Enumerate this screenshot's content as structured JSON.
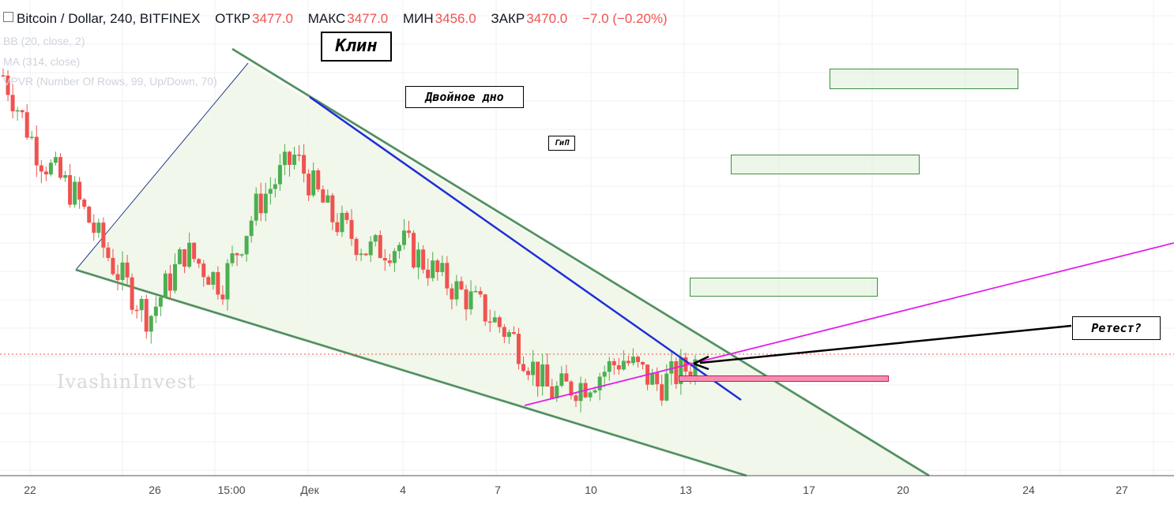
{
  "header": {
    "symbol": "Bitcoin / Dollar, 240, BITFINEX",
    "open_label": "ОТКР",
    "open": "3477.0",
    "high_label": "МАКС",
    "high": "3477.0",
    "low_label": "МИН",
    "low": "3456.0",
    "close_label": "ЗАКР",
    "close": "3470.0",
    "change": "−7.0 (−0.20%)"
  },
  "indicators": [
    "BB (20, close, 2)",
    "MA (314, close)",
    "VPVR (Number Of Rows, 99, Up/Down, 70)"
  ],
  "annotations": {
    "wedge": "Клин",
    "double_bottom": "Двойное дно",
    "hs": "ГиП",
    "retest": "Ретест?"
  },
  "watermark": "IvashinInvest",
  "colors": {
    "up": "#26a69a",
    "up_fill": "#4caf50",
    "down": "#ef5350",
    "wedge_fill": "#eef6e6",
    "wedge_edge": "#6aaf5c",
    "trend_blue": "#1f2fd6",
    "magenta": "#e21ee8",
    "price_line": "#ef5350",
    "grid": "#eef0f3"
  },
  "chart_data": {
    "type": "candlestick",
    "title": "Bitcoin / Dollar, 240, BITFINEX",
    "x_ticks": [
      "22",
      "26",
      "15:00",
      "Дек",
      "4",
      "7",
      "10",
      "13",
      "17",
      "20",
      "24",
      "27"
    ],
    "close_series": [
      5600,
      5000,
      4700,
      4200,
      3800,
      4300,
      4050,
      4650,
      5000,
      4550,
      4300,
      4350,
      4100,
      3900,
      3650,
      3250,
      3320,
      3500,
      3300,
      3470
    ],
    "last_price": 3470.0,
    "grid": true
  }
}
